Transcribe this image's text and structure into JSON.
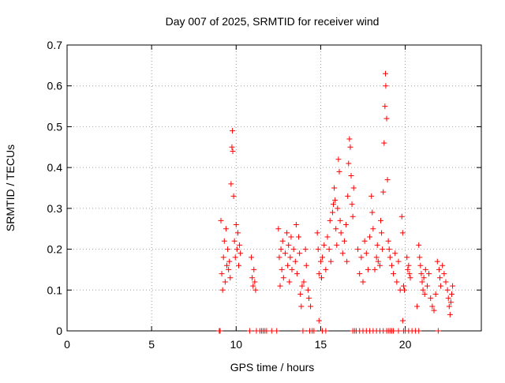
{
  "chart_data": {
    "type": "scatter",
    "title": "Day 007 of 2025, SRMTID for receiver wind",
    "xlabel": "GPS time / hours",
    "ylabel": "SRMTID / TECUs",
    "xlim": [
      0,
      24.5
    ],
    "ylim": [
      0,
      0.7
    ],
    "xticks": [
      0,
      5,
      10,
      15,
      20
    ],
    "yticks": [
      0,
      0.1,
      0.2,
      0.3,
      0.4,
      0.5,
      0.6,
      0.7
    ],
    "xtick_labels": [
      "0",
      "5",
      "10",
      "15",
      "20"
    ],
    "ytick_labels": [
      "0",
      "0.1",
      "0.2",
      "0.3",
      "0.4",
      "0.5",
      "0.6",
      "0.7"
    ],
    "grid": true,
    "marker": "+",
    "marker_color": "#ff0000",
    "series": [
      {
        "name": "SRMTID",
        "points": [
          [
            9.1,
            0.27
          ],
          [
            9.15,
            0.14
          ],
          [
            9.2,
            0.1
          ],
          [
            9.25,
            0.18
          ],
          [
            9.3,
            0.22
          ],
          [
            9.35,
            0.12
          ],
          [
            9.4,
            0.25
          ],
          [
            9.45,
            0.16
          ],
          [
            9.5,
            0.2
          ],
          [
            9.55,
            0.15
          ],
          [
            9.6,
            0.17
          ],
          [
            9.65,
            0.13
          ],
          [
            9.7,
            0.36
          ],
          [
            9.75,
            0.45
          ],
          [
            9.78,
            0.49
          ],
          [
            9.8,
            0.44
          ],
          [
            9.85,
            0.33
          ],
          [
            9.9,
            0.22
          ],
          [
            9.95,
            0.18
          ],
          [
            10.0,
            0.26
          ],
          [
            10.05,
            0.2
          ],
          [
            10.1,
            0.24
          ],
          [
            10.15,
            0.16
          ],
          [
            10.2,
            0.21
          ],
          [
            10.25,
            0.19
          ],
          [
            10.9,
            0.18
          ],
          [
            10.95,
            0.13
          ],
          [
            11.0,
            0.11
          ],
          [
            11.05,
            0.15
          ],
          [
            11.1,
            0.12
          ],
          [
            11.15,
            0.1
          ],
          [
            12.5,
            0.25
          ],
          [
            12.55,
            0.18
          ],
          [
            12.6,
            0.11
          ],
          [
            12.65,
            0.2
          ],
          [
            12.7,
            0.15
          ],
          [
            12.75,
            0.22
          ],
          [
            12.8,
            0.13
          ],
          [
            12.9,
            0.19
          ],
          [
            13.0,
            0.24
          ],
          [
            13.05,
            0.16
          ],
          [
            13.1,
            0.21
          ],
          [
            13.15,
            0.12
          ],
          [
            13.2,
            0.18
          ],
          [
            13.25,
            0.23
          ],
          [
            13.3,
            0.15
          ],
          [
            13.4,
            0.2
          ],
          [
            13.5,
            0.17
          ],
          [
            13.55,
            0.26
          ],
          [
            13.6,
            0.14
          ],
          [
            13.7,
            0.23
          ],
          [
            13.75,
            0.19
          ],
          [
            13.8,
            0.09
          ],
          [
            13.85,
            0.06
          ],
          [
            13.9,
            0.11
          ],
          [
            14.0,
            0.12
          ],
          [
            14.1,
            0.2
          ],
          [
            14.15,
            0.16
          ],
          [
            14.25,
            0.1
          ],
          [
            14.3,
            0.08
          ],
          [
            14.4,
            0.06
          ],
          [
            14.8,
            0.24
          ],
          [
            14.85,
            0.2
          ],
          [
            14.9,
            0.14
          ],
          [
            15.0,
            0.17
          ],
          [
            15.05,
            0.13
          ],
          [
            15.1,
            0.18
          ],
          [
            15.2,
            0.21
          ],
          [
            15.3,
            0.15
          ],
          [
            15.4,
            0.23
          ],
          [
            15.5,
            0.2
          ],
          [
            15.55,
            0.27
          ],
          [
            15.6,
            0.17
          ],
          [
            15.7,
            0.29
          ],
          [
            15.75,
            0.31
          ],
          [
            15.8,
            0.35
          ],
          [
            15.85,
            0.32
          ],
          [
            15.9,
            0.25
          ],
          [
            15.95,
            0.21
          ],
          [
            16.0,
            0.3
          ],
          [
            16.05,
            0.42
          ],
          [
            16.1,
            0.39
          ],
          [
            16.15,
            0.27
          ],
          [
            16.2,
            0.24
          ],
          [
            16.3,
            0.19
          ],
          [
            16.4,
            0.22
          ],
          [
            16.5,
            0.26
          ],
          [
            16.55,
            0.17
          ],
          [
            16.6,
            0.33
          ],
          [
            16.65,
            0.41
          ],
          [
            16.7,
            0.47
          ],
          [
            16.75,
            0.45
          ],
          [
            16.8,
            0.38
          ],
          [
            16.85,
            0.31
          ],
          [
            16.9,
            0.28
          ],
          [
            16.95,
            0.35
          ],
          [
            17.2,
            0.2
          ],
          [
            17.3,
            0.14
          ],
          [
            17.4,
            0.18
          ],
          [
            17.5,
            0.12
          ],
          [
            17.6,
            0.22
          ],
          [
            17.7,
            0.19
          ],
          [
            17.8,
            0.15
          ],
          [
            17.9,
            0.23
          ],
          [
            18.0,
            0.33
          ],
          [
            18.05,
            0.29
          ],
          [
            18.1,
            0.25
          ],
          [
            18.2,
            0.15
          ],
          [
            18.3,
            0.18
          ],
          [
            18.35,
            0.21
          ],
          [
            18.4,
            0.17
          ],
          [
            18.5,
            0.16
          ],
          [
            18.55,
            0.27
          ],
          [
            18.6,
            0.24
          ],
          [
            18.65,
            0.2
          ],
          [
            18.7,
            0.34
          ],
          [
            18.75,
            0.46
          ],
          [
            18.8,
            0.55
          ],
          [
            18.83,
            0.63
          ],
          [
            18.85,
            0.6
          ],
          [
            18.9,
            0.52
          ],
          [
            18.95,
            0.37
          ],
          [
            19.0,
            0.22
          ],
          [
            19.05,
            0.2
          ],
          [
            19.1,
            0.18
          ],
          [
            19.2,
            0.16
          ],
          [
            19.3,
            0.14
          ],
          [
            19.4,
            0.19
          ],
          [
            19.5,
            0.12
          ],
          [
            19.6,
            0.17
          ],
          [
            19.7,
            0.1
          ],
          [
            19.8,
            0.28
          ],
          [
            19.85,
            0.24
          ],
          [
            19.9,
            0.11
          ],
          [
            19.95,
            0.1
          ],
          [
            20.1,
            0.18
          ],
          [
            20.15,
            0.15
          ],
          [
            20.2,
            0.16
          ],
          [
            20.25,
            0.14
          ],
          [
            20.3,
            0.13
          ],
          [
            20.7,
            0.06
          ],
          [
            20.8,
            0.21
          ],
          [
            20.85,
            0.18
          ],
          [
            20.9,
            0.16
          ],
          [
            20.95,
            0.14
          ],
          [
            21.0,
            0.12
          ],
          [
            21.05,
            0.1
          ],
          [
            21.1,
            0.13
          ],
          [
            21.15,
            0.09
          ],
          [
            21.2,
            0.15
          ],
          [
            21.3,
            0.11
          ],
          [
            21.4,
            0.14
          ],
          [
            21.5,
            0.08
          ],
          [
            21.6,
            0.06
          ],
          [
            21.7,
            0.05
          ],
          [
            21.8,
            0.09
          ],
          [
            21.9,
            0.17
          ],
          [
            22.0,
            0.15
          ],
          [
            22.05,
            0.13
          ],
          [
            22.1,
            0.11
          ],
          [
            22.2,
            0.16
          ],
          [
            22.3,
            0.14
          ],
          [
            22.4,
            0.12
          ],
          [
            22.5,
            0.1
          ],
          [
            22.55,
            0.08
          ],
          [
            22.6,
            0.06
          ],
          [
            22.65,
            0.04
          ],
          [
            22.7,
            0.07
          ],
          [
            22.75,
            0.09
          ],
          [
            22.8,
            0.11
          ],
          [
            14.9,
            0.025
          ],
          [
            19.85,
            0.025
          ],
          [
            9.0,
            0.0
          ],
          [
            9.05,
            0.0
          ],
          [
            10.8,
            0.0
          ],
          [
            11.2,
            0.0
          ],
          [
            11.4,
            0.0
          ],
          [
            11.5,
            0.0
          ],
          [
            11.6,
            0.0
          ],
          [
            11.7,
            0.0
          ],
          [
            11.8,
            0.0
          ],
          [
            12.1,
            0.0
          ],
          [
            12.4,
            0.0
          ],
          [
            13.95,
            0.0
          ],
          [
            14.35,
            0.0
          ],
          [
            14.5,
            0.0
          ],
          [
            14.6,
            0.0
          ],
          [
            15.1,
            0.0
          ],
          [
            15.3,
            0.0
          ],
          [
            16.9,
            0.0
          ],
          [
            17.0,
            0.0
          ],
          [
            17.1,
            0.0
          ],
          [
            17.3,
            0.0
          ],
          [
            17.5,
            0.0
          ],
          [
            17.7,
            0.0
          ],
          [
            17.9,
            0.0
          ],
          [
            18.1,
            0.0
          ],
          [
            18.3,
            0.0
          ],
          [
            18.5,
            0.0
          ],
          [
            18.7,
            0.0
          ],
          [
            18.9,
            0.0
          ],
          [
            19.0,
            0.0
          ],
          [
            19.1,
            0.0
          ],
          [
            19.2,
            0.0
          ],
          [
            19.3,
            0.0
          ],
          [
            19.6,
            0.0
          ],
          [
            19.9,
            0.0
          ],
          [
            20.0,
            0.0
          ],
          [
            20.2,
            0.0
          ],
          [
            20.4,
            0.0
          ],
          [
            20.6,
            0.0
          ],
          [
            20.8,
            0.0
          ],
          [
            21.95,
            0.0
          ]
        ]
      }
    ]
  }
}
